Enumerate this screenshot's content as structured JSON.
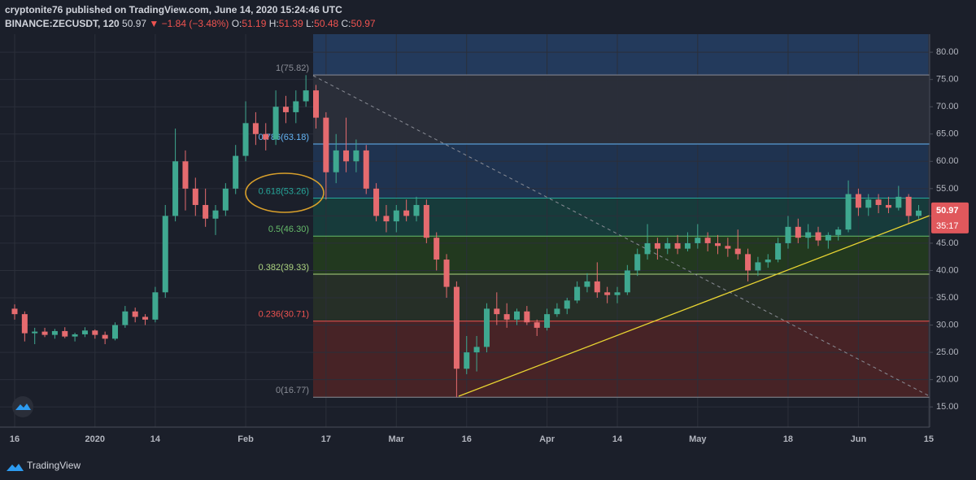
{
  "header": {
    "publisher": "cryptonite76 published on TradingView.com, June 14, 2020 15:24:46 UTC",
    "symbol": "BINANCE:ZECUSDT, 120",
    "last": "50.97",
    "change": "▼ −1.84 (−3.48%)",
    "ohlc": [
      [
        "O:",
        "51.19"
      ],
      [
        "H:",
        "51.39"
      ],
      [
        "L:",
        "50.48"
      ],
      [
        "C:",
        "50.97"
      ]
    ]
  },
  "chart_data": {
    "type": "candlestick",
    "categories": [
      "16",
      null,
      null,
      null,
      null,
      null,
      null,
      null,
      "2020",
      null,
      null,
      null,
      null,
      null,
      "14",
      null,
      null,
      null,
      null,
      null,
      null,
      null,
      null,
      "Feb",
      null,
      null,
      null,
      null,
      null,
      null,
      null,
      "17",
      null,
      null,
      null,
      null,
      null,
      null,
      "Mar",
      null,
      null,
      null,
      null,
      null,
      null,
      "16",
      null,
      null,
      null,
      null,
      null,
      null,
      null,
      "Apr",
      null,
      null,
      null,
      null,
      null,
      null,
      "14",
      null,
      null,
      null,
      null,
      null,
      null,
      null,
      "May",
      null,
      null,
      null,
      null,
      null,
      null,
      null,
      null,
      "18",
      null,
      null,
      null,
      null,
      null,
      null,
      "Jun",
      null,
      null,
      null,
      null,
      null,
      null,
      "15"
    ],
    "candles": [
      [
        33,
        33.8,
        31,
        32
      ],
      [
        32,
        32.5,
        27,
        28.5
      ],
      [
        28.5,
        29.5,
        26.5,
        28.8
      ],
      [
        28.8,
        29.5,
        27.8,
        28.2
      ],
      [
        28.2,
        29.3,
        27.5,
        28.9
      ],
      [
        28.9,
        29.6,
        27.6,
        27.9
      ],
      [
        27.9,
        28.6,
        27,
        28.3
      ],
      [
        28.3,
        29.6,
        27.8,
        29
      ],
      [
        29,
        29.2,
        27.5,
        28.2
      ],
      [
        28.2,
        28.8,
        26.5,
        27.5
      ],
      [
        27.5,
        30.5,
        27.2,
        30
      ],
      [
        30,
        33.5,
        29.5,
        32.5
      ],
      [
        32.5,
        33.2,
        30.5,
        31.5
      ],
      [
        31.5,
        32,
        30,
        31
      ],
      [
        31,
        37,
        30.5,
        36
      ],
      [
        36,
        52,
        35,
        50
      ],
      [
        50,
        66,
        49,
        60
      ],
      [
        60,
        62,
        51,
        55
      ],
      [
        55,
        57,
        50,
        52
      ],
      [
        52,
        55,
        48,
        49.5
      ],
      [
        49.5,
        52,
        46.5,
        51
      ],
      [
        51,
        56,
        50,
        55
      ],
      [
        55,
        63,
        54,
        61
      ],
      [
        61,
        71,
        60,
        67
      ],
      [
        67,
        69,
        63,
        65
      ],
      [
        65,
        67,
        62,
        64
      ],
      [
        64,
        73,
        63,
        70
      ],
      [
        70,
        72,
        67,
        69
      ],
      [
        69,
        73,
        67,
        71
      ],
      [
        71,
        75.8,
        70,
        73
      ],
      [
        73,
        74,
        66,
        68
      ],
      [
        68,
        69,
        53,
        58
      ],
      [
        58,
        65,
        56,
        62
      ],
      [
        62,
        68,
        58,
        60
      ],
      [
        60,
        64,
        58,
        62
      ],
      [
        62,
        63,
        54,
        55
      ],
      [
        55,
        56,
        49,
        50
      ],
      [
        50,
        52,
        47,
        49
      ],
      [
        49,
        52,
        47,
        51
      ],
      [
        51,
        53,
        49,
        50
      ],
      [
        50,
        53.5,
        49,
        52
      ],
      [
        52,
        53,
        45,
        46
      ],
      [
        46,
        47,
        40,
        42
      ],
      [
        42,
        43,
        35,
        37
      ],
      [
        37,
        38,
        16.77,
        22
      ],
      [
        22,
        28,
        21,
        25
      ],
      [
        25,
        28,
        21.5,
        26
      ],
      [
        26,
        34,
        25,
        33
      ],
      [
        33,
        36,
        30,
        32
      ],
      [
        32,
        34,
        29.5,
        31
      ],
      [
        31,
        33,
        30,
        32.5
      ],
      [
        32.5,
        33.5,
        30,
        30.5
      ],
      [
        30.5,
        31,
        28,
        29.5
      ],
      [
        29.5,
        33,
        29,
        32
      ],
      [
        32,
        34,
        31.5,
        33
      ],
      [
        33,
        35,
        32,
        34.5
      ],
      [
        34.5,
        38,
        34,
        37
      ],
      [
        37,
        39.5,
        36,
        38
      ],
      [
        38,
        41.5,
        35,
        36
      ],
      [
        36,
        37,
        34,
        35.5
      ],
      [
        35.5,
        37,
        34,
        36
      ],
      [
        36,
        41,
        35.5,
        40
      ],
      [
        40,
        44,
        39,
        43
      ],
      [
        43,
        48.5,
        42,
        45
      ],
      [
        45,
        46,
        42,
        44
      ],
      [
        44,
        46,
        43,
        45
      ],
      [
        45,
        46.5,
        43,
        44
      ],
      [
        44,
        47,
        43.5,
        45
      ],
      [
        45,
        48.5,
        44,
        46
      ],
      [
        46,
        47,
        43.5,
        45
      ],
      [
        45,
        46.5,
        43,
        44.5
      ],
      [
        44.5,
        46,
        42.5,
        44
      ],
      [
        44,
        47.5,
        42,
        43
      ],
      [
        43,
        44,
        38,
        40
      ],
      [
        40,
        42.5,
        39,
        41.5
      ],
      [
        41.5,
        43,
        40.5,
        42
      ],
      [
        42,
        46,
        41.5,
        45
      ],
      [
        45,
        50,
        44,
        48
      ],
      [
        48,
        49.5,
        45,
        46
      ],
      [
        46,
        48.5,
        44,
        47
      ],
      [
        47,
        48,
        44.5,
        45.5
      ],
      [
        45.5,
        47,
        44,
        46.5
      ],
      [
        46.5,
        48,
        45.5,
        47.5
      ],
      [
        47.5,
        56.5,
        47,
        54
      ],
      [
        54,
        55,
        50,
        51.5
      ],
      [
        51.5,
        54,
        50,
        53
      ],
      [
        53,
        54,
        50.5,
        52
      ],
      [
        52,
        53.5,
        50.5,
        51.5
      ],
      [
        51.5,
        55.5,
        51,
        53.5
      ],
      [
        53.5,
        54,
        48.5,
        50
      ],
      [
        50,
        52,
        49.5,
        50.97
      ],
      null
    ],
    "up_color": "#3fa890",
    "down_color": "#e56b6f",
    "ylim": [
      11.3,
      83.3
    ],
    "yticks": [
      {
        "value": 15,
        "label": "15.00"
      },
      {
        "value": 20,
        "label": "20.00"
      },
      {
        "value": 25,
        "label": "25.00"
      },
      {
        "value": 30,
        "label": "30.00"
      },
      {
        "value": 35,
        "label": "35.00"
      },
      {
        "value": 40,
        "label": "40.00"
      },
      {
        "value": 45,
        "label": "45.00"
      },
      {
        "value": 50,
        "label": "50.00"
      },
      {
        "value": 55,
        "label": "55.00"
      },
      {
        "value": 60,
        "label": "60.00"
      },
      {
        "value": 65,
        "label": "65.00"
      },
      {
        "value": 70,
        "label": "70.00"
      },
      {
        "value": 75,
        "label": "75.00"
      },
      {
        "value": 80,
        "label": "80.00"
      }
    ],
    "grid": true,
    "fib_top_fill": "#233a5c",
    "fib_levels": [
      {
        "value": 75.82,
        "label": "1(75.82)",
        "color": "#8a8d96",
        "fill": "#2a2e39"
      },
      {
        "value": 63.18,
        "label": "0.786(63.18)",
        "color": "#64b5f6",
        "fill": "#1f3350"
      },
      {
        "value": 53.26,
        "label": "0.618(53.26)",
        "color": "#26a69a",
        "fill": "#173b3b"
      },
      {
        "value": 46.3,
        "label": "0.5(46.30)",
        "color": "#66bb6a",
        "fill": "#22391f"
      },
      {
        "value": 39.33,
        "label": "0.382(39.33)",
        "color": "#aed581",
        "fill": "#262f27"
      },
      {
        "value": 30.71,
        "label": "0.236(30.71)",
        "color": "#ef5350",
        "fill": "#472326"
      },
      {
        "value": 16.77,
        "label": "0(16.77)",
        "color": "#8a8d96"
      }
    ],
    "price_label": {
      "value": 50.97,
      "label": "50.97",
      "color": "#e0585c"
    },
    "countdown": "35:17"
  },
  "footer": {
    "brand": "TradingView"
  }
}
